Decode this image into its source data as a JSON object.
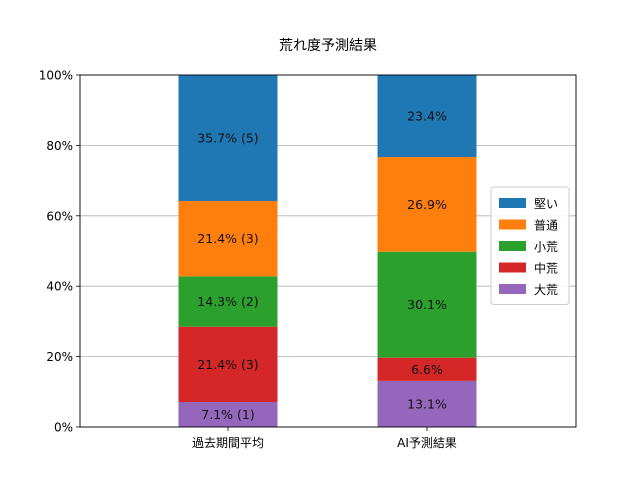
{
  "chart_data": {
    "type": "bar",
    "stacked": true,
    "title": "荒れ度予測結果",
    "categories": [
      "過去期間平均",
      "AI予測結果"
    ],
    "y_ticks": [
      "0%",
      "20%",
      "40%",
      "60%",
      "80%",
      "100%"
    ],
    "ylim": [
      0,
      100
    ],
    "grid": "horizontal",
    "legend_position": "right",
    "series": [
      {
        "name": "大荒",
        "color": "#9467bd",
        "values": [
          7.1,
          13.1
        ],
        "labels": [
          "7.1% (1)",
          "13.1%"
        ]
      },
      {
        "name": "中荒",
        "color": "#d62728",
        "values": [
          21.4,
          6.6
        ],
        "labels": [
          "21.4% (3)",
          "6.6%"
        ]
      },
      {
        "name": "小荒",
        "color": "#2ca02c",
        "values": [
          14.3,
          30.1
        ],
        "labels": [
          "14.3% (2)",
          "30.1%"
        ]
      },
      {
        "name": "普通",
        "color": "#ff7f0e",
        "values": [
          21.4,
          26.9
        ],
        "labels": [
          "21.4% (3)",
          "26.9%"
        ]
      },
      {
        "name": "堅い",
        "color": "#1f77b4",
        "values": [
          35.7,
          23.4
        ],
        "labels": [
          "35.7% (5)",
          "23.4%"
        ]
      }
    ],
    "legend_order": [
      "堅い",
      "普通",
      "小荒",
      "中荒",
      "大荒"
    ]
  }
}
